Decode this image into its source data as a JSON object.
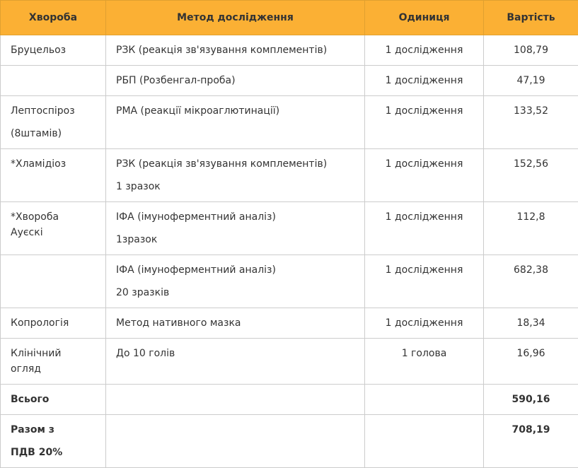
{
  "table": {
    "header": [
      "Хвороба",
      "Метод дослідження",
      "Одиниця",
      "Вартість"
    ],
    "rows": [
      [
        [
          "Бруцельоз"
        ],
        [
          "РЗК (реакція зв'язування комплементів)"
        ],
        [
          "1 дослідження"
        ],
        [
          "108,79"
        ]
      ],
      [
        [],
        [
          "РБП (Розбенгал-проба)"
        ],
        [
          "1 дослідження"
        ],
        [
          "47,19"
        ]
      ],
      [
        [
          "Лептоспіроз",
          "(8штамів)"
        ],
        [
          "РМА (реакції мікроаглютинації)"
        ],
        [
          "1 дослідження"
        ],
        [
          "133,52"
        ]
      ],
      [
        [
          "*Хламідіоз"
        ],
        [
          "РЗК (реакція зв'язування комплементів)",
          "1 зразок"
        ],
        [
          "1 дослідження"
        ],
        [
          "152,56"
        ]
      ],
      [
        [
          "*Хвороба Ауєскі"
        ],
        [
          "ІФА (імуноферментний аналіз)",
          "1зразок"
        ],
        [
          "1 дослідження"
        ],
        [
          "112,8"
        ]
      ],
      [
        [],
        [
          "ІФА (імуноферментний аналіз)",
          "20 зразків"
        ],
        [
          "1 дослідження"
        ],
        [
          "682,38"
        ]
      ],
      [
        [
          "Копрологія"
        ],
        [
          "Метод нативного мазка"
        ],
        [
          "1 дослідження"
        ],
        [
          "18,34"
        ]
      ],
      [
        [
          "Клінічний огляд"
        ],
        [
          "До 10 голів"
        ],
        [
          "1 голова"
        ],
        [
          "16,96"
        ]
      ],
      [
        [
          "Всього"
        ],
        [],
        [],
        [
          "590,16"
        ]
      ],
      [
        [
          "Разом з",
          "ПДВ 20%"
        ],
        [],
        [],
        [
          "708,19"
        ]
      ]
    ]
  }
}
